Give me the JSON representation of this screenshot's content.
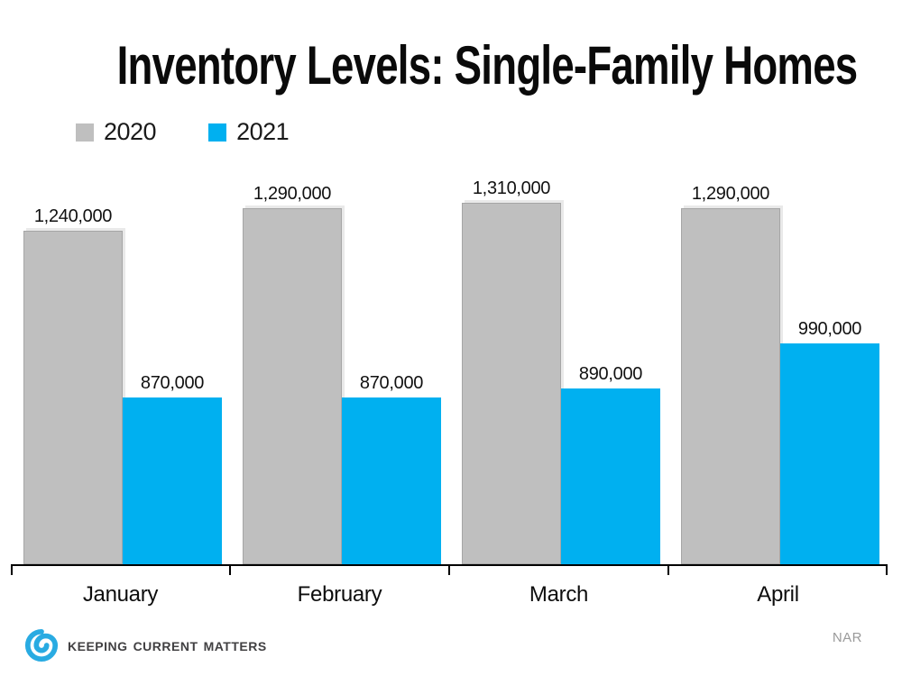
{
  "title": "Inventory Levels: Single-Family Homes",
  "chart_data": {
    "type": "bar",
    "title": "Inventory Levels: Single-Family Homes",
    "categories": [
      "January",
      "February",
      "March",
      "April"
    ],
    "series": [
      {
        "name": "2020",
        "color": "#BFBFBF",
        "values": [
          1240000,
          1290000,
          1310000,
          1290000
        ],
        "data_labels": [
          "1,240,000",
          "1,290,000",
          "1,310,000",
          "1,290,000"
        ]
      },
      {
        "name": "2021",
        "color": "#00B0F0",
        "values": [
          870000,
          870000,
          890000,
          990000
        ],
        "data_labels": [
          "870,000",
          "870,000",
          "890,000",
          "990,000"
        ]
      }
    ],
    "ylim": [
      500000,
      1360000
    ],
    "grid": false,
    "value_axis_visible": false,
    "data_labels_visible": true,
    "legend_position": "top-left"
  },
  "footer": {
    "brand": "Keeping Current Matters",
    "source": "NAR",
    "brand_blue": "#29ABE2",
    "brand_text_color": "#414042"
  }
}
